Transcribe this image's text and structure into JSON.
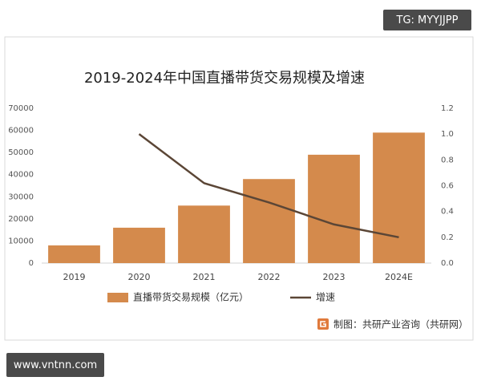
{
  "badge_top": "TG: MYYJJPP",
  "badge_bottom": "www.vntnn.com",
  "chart_data": {
    "type": "bar",
    "title": "2019-2024年中国直播带货交易规模及增速",
    "categories": [
      "2019",
      "2020",
      "2021",
      "2022",
      "2023",
      "2024E"
    ],
    "series": [
      {
        "name": "直播带货交易规模（亿元）",
        "type": "bar",
        "color": "#d48a4c",
        "axis": "y",
        "values": [
          8000,
          16000,
          26000,
          38000,
          49000,
          59000
        ]
      },
      {
        "name": "增速",
        "type": "line",
        "color": "#5b4636",
        "axis": "y2",
        "values": [
          null,
          1.0,
          0.62,
          0.47,
          0.3,
          0.2
        ]
      }
    ],
    "ylim": [
      0,
      70000
    ],
    "yticks": [
      0,
      10000,
      20000,
      30000,
      40000,
      50000,
      60000,
      70000
    ],
    "y2lim": [
      0,
      1.2
    ],
    "y2ticks": [
      {
        "value": 0,
        "label": "0.0"
      },
      0.2,
      0.4,
      0.6,
      0.8,
      {
        "value": 1,
        "label": "1.0"
      },
      1.2
    ],
    "grid": false,
    "legend": "bottom",
    "source": "制图：共研产业咨询（共研网）"
  }
}
